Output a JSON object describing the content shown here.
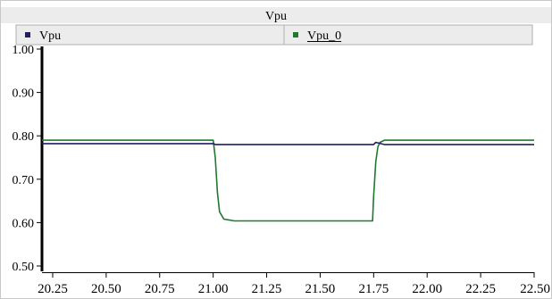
{
  "chart_data": {
    "type": "line",
    "title": "Vpu",
    "xlabel": "",
    "ylabel": "",
    "xlim": [
      20.2,
      22.5
    ],
    "ylim": [
      0.5,
      1.0
    ],
    "x_ticks": [
      "20.25",
      "20.50",
      "20.75",
      "21.00",
      "21.25",
      "21.50",
      "21.75",
      "22.00",
      "22.25",
      "22.50"
    ],
    "y_ticks": [
      "1.00",
      "0.90",
      "0.80",
      "0.70",
      "0.60",
      "0.50"
    ],
    "grid": false,
    "legend_position": "top",
    "series": [
      {
        "name": "Vpu",
        "color": "#202060",
        "x": [
          20.2,
          21.0,
          21.01,
          21.75,
          21.76,
          21.8,
          22.5
        ],
        "y": [
          0.782,
          0.782,
          0.78,
          0.78,
          0.785,
          0.78,
          0.78
        ]
      },
      {
        "name": "Vpu_0",
        "color": "#1f7a2e",
        "x": [
          20.2,
          21.0,
          21.01,
          21.02,
          21.03,
          21.05,
          21.1,
          21.2,
          21.745,
          21.75,
          21.76,
          21.77,
          21.78,
          21.8,
          22.5
        ],
        "y": [
          0.79,
          0.79,
          0.75,
          0.67,
          0.625,
          0.608,
          0.604,
          0.604,
          0.604,
          0.66,
          0.74,
          0.775,
          0.785,
          0.79,
          0.79
        ]
      }
    ]
  }
}
